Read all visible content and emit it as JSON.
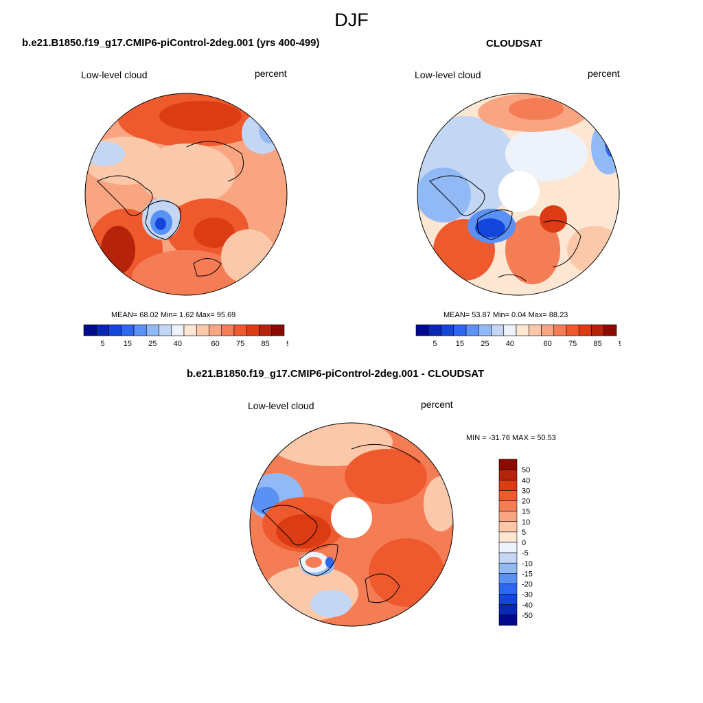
{
  "page_title": "DJF",
  "panels": [
    {
      "title": "b.e21.B1850.f19_g17.CMIP6-piControl-2deg.001 (yrs 400-499)",
      "left_label": "Low-level cloud",
      "right_label": "percent",
      "stats": "MEAN=  68.02  Min=   1.62  Max=  95.69"
    },
    {
      "title": "CLOUDSAT",
      "left_label": "Low-level cloud",
      "right_label": "percent",
      "stats": "MEAN=  53.87  Min=   0.04  Max=  88.23"
    },
    {
      "title": "b.e21.B1850.f19_g17.CMIP6-piControl-2deg.001 - CLOUDSAT",
      "left_label": "Low-level cloud",
      "right_label": "percent",
      "stats": "MIN = -31.76 MAX =  50.53"
    }
  ],
  "colorbar_abs": {
    "labels": [
      "5",
      "15",
      "25",
      "40",
      "60",
      "75",
      "85",
      "95"
    ],
    "colors": [
      "#000a8c",
      "#0a28b4",
      "#1446dc",
      "#2d69f0",
      "#5a91f5",
      "#91b9f5",
      "#c3d7f5",
      "#eef3fb",
      "#fde6d2",
      "#fbc8aa",
      "#f9a582",
      "#f57d55",
      "#ee5a2d",
      "#dc3c14",
      "#b4230a",
      "#8c0a00"
    ]
  },
  "colorbar_diff": {
    "labels": [
      "50",
      "40",
      "30",
      "20",
      "15",
      "10",
      "5",
      "0",
      "-5",
      "-10",
      "-15",
      "-20",
      "-30",
      "-40",
      "-50"
    ],
    "colors": [
      "#8c0a00",
      "#b4230a",
      "#dc3c14",
      "#ee5a2d",
      "#f57d55",
      "#f9a582",
      "#fbc8aa",
      "#fde6d2",
      "#eef3fb",
      "#c3d7f5",
      "#91b9f5",
      "#5a91f5",
      "#2d69f0",
      "#1446dc",
      "#0a28b4",
      "#000a8c"
    ]
  }
}
